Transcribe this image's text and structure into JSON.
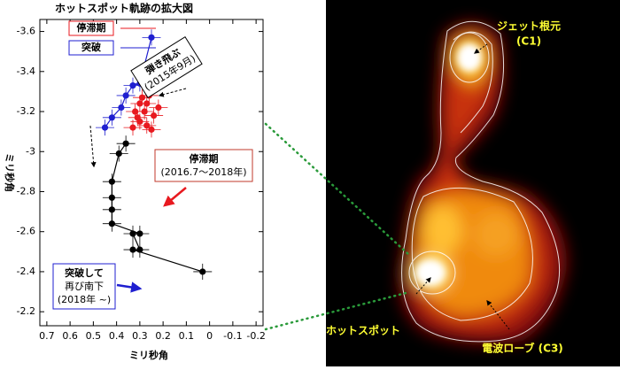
{
  "chart_data": {
    "type": "scatter",
    "title": "ホットスポット軌跡の拡大図",
    "x_label": "ミリ秒角",
    "y_label": "ミリ秒角",
    "xlim": [
      0.73,
      -0.23
    ],
    "ylim": [
      -2.13,
      -3.66
    ],
    "xticks": [
      0.7,
      0.6,
      0.5,
      0.4,
      0.3,
      0.2,
      0.1,
      0,
      -0.1,
      -0.2
    ],
    "yticks": [
      -2.2,
      -2.4,
      -2.6,
      -2.8,
      -3,
      -3.2,
      -3.4,
      -3.6
    ],
    "series": [
      {
        "color": "#000000",
        "connect": true,
        "xerr": 0.04,
        "yerr": 0.04,
        "x": [
          0.03,
          0.33,
          0.3,
          0.33,
          0.3,
          0.42,
          0.42,
          0.42,
          0.42,
          0.39,
          0.36
        ],
        "y": [
          -2.4,
          -2.51,
          -2.51,
          -2.59,
          -2.59,
          -2.64,
          -2.71,
          -2.77,
          -2.85,
          -2.99,
          -3.04
        ]
      },
      {
        "name": "停滞期",
        "color": "#e8191f",
        "connect": false,
        "xerr": 0.04,
        "yerr": 0.04,
        "x": [
          0.33,
          0.3,
          0.27,
          0.25,
          0.32,
          0.28,
          0.24,
          0.3,
          0.27,
          0.22,
          0.26,
          0.29,
          0.31
        ],
        "y": [
          -3.12,
          -3.15,
          -3.13,
          -3.11,
          -3.2,
          -3.2,
          -3.18,
          -3.24,
          -3.24,
          -3.22,
          -3.28,
          -3.27,
          -3.17
        ]
      },
      {
        "name": "突破",
        "color": "#1f1fd0",
        "connect": true,
        "xerr": 0.04,
        "yerr": 0.04,
        "x": [
          0.45,
          0.42,
          0.38,
          0.36,
          0.33,
          0.3,
          0.25
        ],
        "y": [
          -3.12,
          -3.17,
          -3.22,
          -3.28,
          -3.33,
          -3.34,
          -3.57
        ]
      }
    ],
    "annotations": [
      {
        "lines": [
          "弾き飛ぶ",
          "(2015年9月)"
        ]
      },
      {
        "lines": [
          "停滞期",
          "(2016.7～2018年)"
        ]
      },
      {
        "lines": [
          "突破して",
          "再び南下",
          "(2018年 ~)"
        ]
      }
    ]
  },
  "image": {
    "labels": [
      [
        "ジェット根元",
        "(C1)"
      ],
      [
        "ホットスポット"
      ],
      [
        "電波ローブ (C3)"
      ]
    ]
  }
}
